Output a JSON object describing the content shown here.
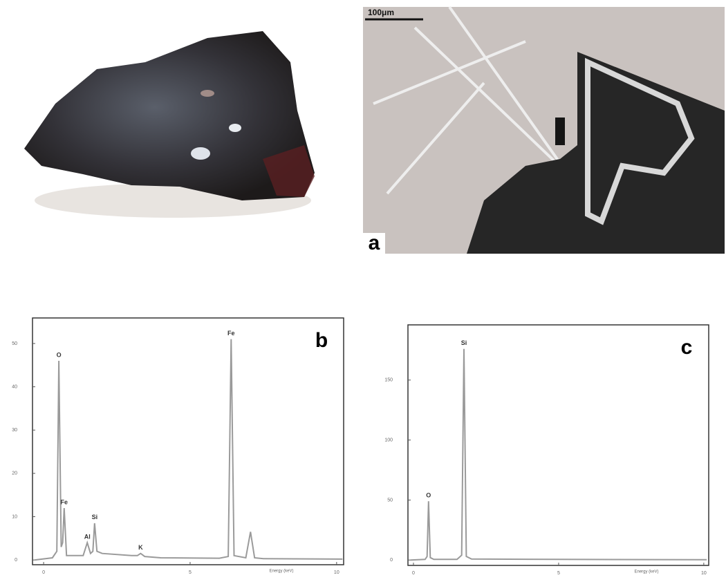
{
  "images": {
    "scale_bar": "100μm",
    "panel_label": "a"
  },
  "chart_data": [
    {
      "type": "line",
      "panel_label": "b",
      "x_label": "Energy (keV)",
      "color": "#9a9a9a",
      "x": [
        -0.3,
        0.3,
        0.45,
        0.52,
        0.6,
        0.65,
        0.7,
        0.78,
        0.95,
        1.35,
        1.49,
        1.6,
        1.68,
        1.74,
        1.82,
        2.0,
        3.0,
        3.2,
        3.31,
        3.45,
        4.0,
        6.0,
        6.3,
        6.4,
        6.5,
        6.9,
        7.06,
        7.2,
        7.5,
        10.2
      ],
      "values": [
        0,
        0.5,
        2,
        46,
        3,
        4,
        12,
        1,
        1,
        1,
        4,
        1.5,
        2,
        8.5,
        2,
        1.5,
        1,
        1,
        1.5,
        0.8,
        0.5,
        0.4,
        0.8,
        51,
        1,
        0.5,
        6.5,
        0.5,
        0.3,
        0.2
      ],
      "xlim": [
        -0.38,
        10.24
      ],
      "ylim": [
        -1.1,
        55.9
      ],
      "xticks": [
        0,
        5,
        10
      ],
      "yticks": [
        0,
        10,
        20,
        30,
        40,
        50
      ],
      "annotations": [
        {
          "text": "O",
          "x": 0.52,
          "y": 46
        },
        {
          "text": "Fe",
          "x": 0.7,
          "y": 12
        },
        {
          "text": "Al",
          "x": 1.49,
          "y": 4
        },
        {
          "text": "Si",
          "x": 1.74,
          "y": 8.5
        },
        {
          "text": "K",
          "x": 3.31,
          "y": 1.5
        },
        {
          "text": "Fe",
          "x": 6.4,
          "y": 51
        }
      ]
    },
    {
      "type": "line",
      "panel_label": "c",
      "x_label": "Energy (keV)",
      "color": "#9a9a9a",
      "x": [
        -0.1,
        0.4,
        0.47,
        0.52,
        0.58,
        0.7,
        1.5,
        1.66,
        1.74,
        1.82,
        2.0,
        5.0,
        10.1
      ],
      "values": [
        0,
        0.5,
        3,
        49,
        2,
        0.5,
        0.5,
        4,
        176,
        3,
        0.8,
        0.5,
        0.3
      ],
      "xlim": [
        -0.19,
        10.17
      ],
      "ylim": [
        -4.5,
        196
      ],
      "xticks": [
        0,
        5,
        10
      ],
      "yticks": [
        0,
        50,
        100,
        150
      ],
      "annotations": [
        {
          "text": "O",
          "x": 0.52,
          "y": 49
        },
        {
          "text": "Si",
          "x": 1.74,
          "y": 176
        }
      ]
    }
  ]
}
